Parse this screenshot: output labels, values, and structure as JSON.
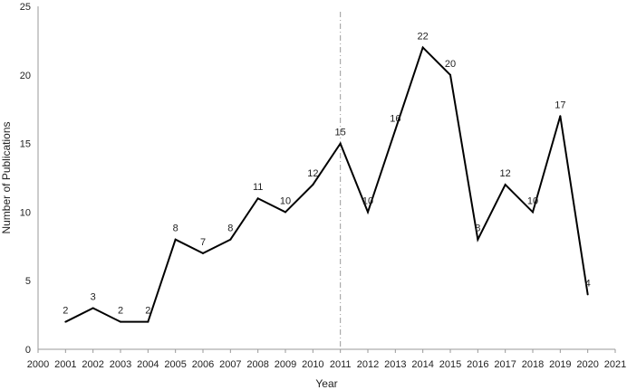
{
  "chart_data": {
    "type": "line",
    "xlabel": "Year",
    "ylabel": "Number of Publications",
    "xlim": [
      2000,
      2021
    ],
    "ylim": [
      0,
      25
    ],
    "x_ticks": [
      "2000",
      "2001",
      "2002",
      "2003",
      "2004",
      "2005",
      "2006",
      "2007",
      "2008",
      "2009",
      "2010",
      "2011",
      "2012",
      "2013",
      "2014",
      "2015",
      "2016",
      "2017",
      "2018",
      "2019",
      "2020",
      "2021"
    ],
    "y_ticks": [
      "0",
      "5",
      "10",
      "15",
      "20",
      "25"
    ],
    "grid": false,
    "reference_line_x": 2011,
    "series": [
      {
        "x": [
          2001,
          2002,
          2003,
          2004,
          2005,
          2006,
          2007,
          2008,
          2009,
          2010,
          2011,
          2012,
          2013,
          2014,
          2015,
          2016,
          2017,
          2018,
          2019,
          2020
        ],
        "values": [
          2,
          3,
          2,
          2,
          8,
          7,
          8,
          11,
          10,
          12,
          15,
          10,
          16,
          22,
          20,
          8,
          12,
          10,
          17,
          4
        ],
        "labels": [
          "2",
          "3",
          "2",
          "2",
          "8",
          "7",
          "8",
          "11",
          "10",
          "12",
          "15",
          "10",
          "16",
          "22",
          "20",
          "8",
          "12",
          "10",
          "17",
          "4"
        ],
        "color": "#000000"
      }
    ]
  }
}
